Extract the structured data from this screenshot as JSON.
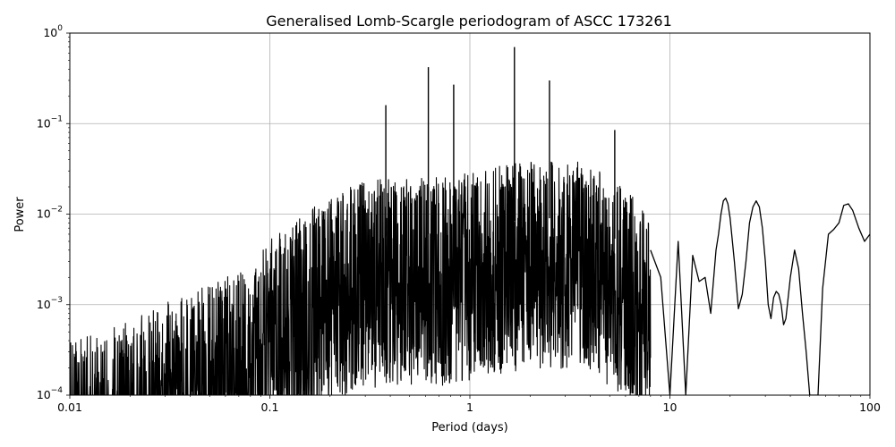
{
  "chart_data": {
    "type": "line",
    "title": "Generalised Lomb-Scargle periodogram of ASCC 173261",
    "xlabel": "Period (days)",
    "ylabel": "Power",
    "xscale": "log",
    "yscale": "log",
    "xlim": [
      0.01,
      100
    ],
    "ylim": [
      0.0001,
      1
    ],
    "grid": true,
    "x_ticks": [
      {
        "value": 0.01,
        "label": "0.01"
      },
      {
        "value": 0.1,
        "label": "0.1"
      },
      {
        "value": 1,
        "label": "1"
      },
      {
        "value": 10,
        "label": "10"
      },
      {
        "value": 100,
        "label": "100"
      }
    ],
    "y_ticks": [
      {
        "value": 0.0001,
        "base": "10",
        "exp": "−4"
      },
      {
        "value": 0.001,
        "base": "10",
        "exp": "−3"
      },
      {
        "value": 0.01,
        "base": "10",
        "exp": "−2"
      },
      {
        "value": 0.1,
        "base": "10",
        "exp": "−1"
      },
      {
        "value": 1,
        "base": "10",
        "exp": "0"
      }
    ],
    "peaks": [
      {
        "period": 0.38,
        "power": 0.16
      },
      {
        "period": 0.62,
        "power": 0.42
      },
      {
        "period": 0.83,
        "power": 0.27
      },
      {
        "period": 1.67,
        "power": 0.7
      },
      {
        "period": 2.5,
        "power": 0.3
      },
      {
        "period": 5.3,
        "power": 0.085
      }
    ],
    "envelope": [
      {
        "period": 0.01,
        "power": 0.0003
      },
      {
        "period": 0.02,
        "power": 0.0005
      },
      {
        "period": 0.03,
        "power": 0.0008
      },
      {
        "period": 0.05,
        "power": 0.0013
      },
      {
        "period": 0.08,
        "power": 0.002
      },
      {
        "period": 0.1,
        "power": 0.004
      },
      {
        "period": 0.15,
        "power": 0.008
      },
      {
        "period": 0.2,
        "power": 0.012
      },
      {
        "period": 0.3,
        "power": 0.018
      },
      {
        "period": 0.5,
        "power": 0.02
      },
      {
        "period": 0.8,
        "power": 0.02
      },
      {
        "period": 1.2,
        "power": 0.025
      },
      {
        "period": 2,
        "power": 0.03
      },
      {
        "period": 3.5,
        "power": 0.03
      },
      {
        "period": 5,
        "power": 0.02
      },
      {
        "period": 8,
        "power": 0.008
      }
    ],
    "series": [
      {
        "points": [
          [
            8.0,
            0.004
          ],
          [
            9.0,
            0.002
          ],
          [
            10.0,
            0.0001
          ],
          [
            11.0,
            0.005
          ],
          [
            12.0,
            0.0001
          ],
          [
            13.0,
            0.0035
          ],
          [
            14.0,
            0.0018
          ],
          [
            15.0,
            0.002
          ],
          [
            16.0,
            0.0008
          ],
          [
            17.0,
            0.004
          ],
          [
            17.5,
            0.006
          ],
          [
            18.0,
            0.01
          ],
          [
            18.5,
            0.014
          ],
          [
            19.0,
            0.015
          ],
          [
            19.5,
            0.013
          ],
          [
            20.0,
            0.009
          ],
          [
            21.0,
            0.003
          ],
          [
            22.0,
            0.0009
          ],
          [
            23.0,
            0.0013
          ],
          [
            24.0,
            0.003
          ],
          [
            25.0,
            0.008
          ],
          [
            26.0,
            0.012
          ],
          [
            27.0,
            0.014
          ],
          [
            28.0,
            0.012
          ],
          [
            29.0,
            0.007
          ],
          [
            30.0,
            0.003
          ],
          [
            31.0,
            0.001
          ],
          [
            32.0,
            0.0007
          ],
          [
            33.0,
            0.0012
          ],
          [
            34.0,
            0.0014
          ],
          [
            35.0,
            0.0013
          ],
          [
            36.0,
            0.001
          ],
          [
            37.0,
            0.0006
          ],
          [
            38.0,
            0.0007
          ],
          [
            40.0,
            0.002
          ],
          [
            42.0,
            0.004
          ],
          [
            44.0,
            0.0025
          ],
          [
            46.0,
            0.0008
          ],
          [
            48.0,
            0.0003
          ],
          [
            50.0,
            0.0001
          ],
          [
            55.0,
            0.0001
          ],
          [
            58.0,
            0.0015
          ],
          [
            62.0,
            0.006
          ],
          [
            66.0,
            0.0068
          ],
          [
            70.0,
            0.008
          ],
          [
            74.0,
            0.0125
          ],
          [
            78.0,
            0.013
          ],
          [
            82.0,
            0.011
          ],
          [
            88.0,
            0.007
          ],
          [
            94.0,
            0.005
          ],
          [
            100.0,
            0.006
          ]
        ]
      }
    ]
  }
}
